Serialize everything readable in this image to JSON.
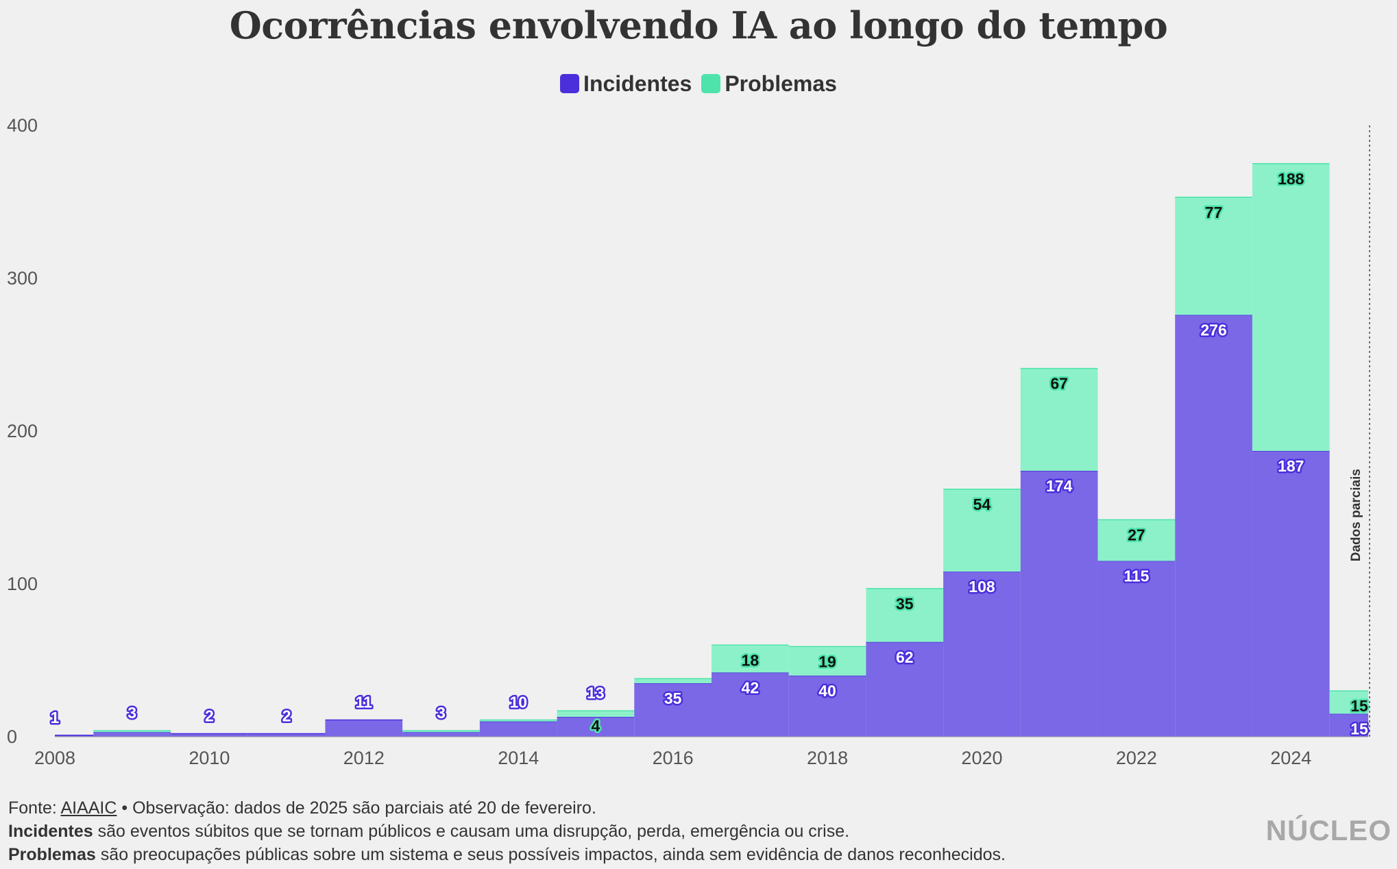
{
  "colors": {
    "incidentes": "#4a2fdb",
    "incidentes_fill": "#7b68e6",
    "problemas": "#4ee3ab",
    "problemas_fill": "#8cf1c9",
    "text": "#333333",
    "background": "#f0f0f0"
  },
  "chart_data": {
    "type": "bar",
    "stacked": true,
    "title": "Ocorrências envolvendo IA ao longo do tempo",
    "categories": [
      "2008",
      "2009",
      "2010",
      "2011",
      "2012",
      "2013",
      "2014",
      "2015",
      "2016",
      "2017",
      "2018",
      "2019",
      "2020",
      "2021",
      "2022",
      "2023",
      "2024",
      "2025"
    ],
    "series": [
      {
        "name": "Incidentes",
        "values": [
          1,
          3,
          2,
          2,
          11,
          3,
          10,
          13,
          35,
          42,
          40,
          62,
          108,
          174,
          115,
          276,
          187,
          15
        ]
      },
      {
        "name": "Problemas",
        "values": [
          null,
          null,
          null,
          null,
          null,
          null,
          null,
          4,
          null,
          18,
          19,
          35,
          54,
          67,
          27,
          77,
          188,
          15
        ]
      }
    ],
    "hidden_segments": [
      {
        "series": "Problemas",
        "category": "2009",
        "value": 1
      },
      {
        "series": "Problemas",
        "category": "2013",
        "value": 1
      },
      {
        "series": "Problemas",
        "category": "2014",
        "value": 1
      },
      {
        "series": "Problemas",
        "category": "2016",
        "value": 3
      }
    ],
    "ylim": [
      0,
      400
    ],
    "yticks": [
      "0",
      "100",
      "200",
      "300",
      "400"
    ],
    "xticks": [
      "2008",
      "2010",
      "2012",
      "2014",
      "2016",
      "2018",
      "2020",
      "2022",
      "2024"
    ],
    "xlim": [
      2008,
      2025
    ],
    "annotation": "Dados parciais",
    "legend_position": "top-center",
    "grid": false
  },
  "legend": {
    "incidentes": "Incidentes",
    "problemas": "Problemas"
  },
  "footer": {
    "fonte_prefix": "Fonte: ",
    "fonte_link": "AIAAIC",
    "fonte_note": " • Observação: dados de 2025 são parciais até 20 de fevereiro.",
    "incidentes_term": "Incidentes",
    "incidentes_def": " são eventos súbitos que se tornam públicos e causam uma disrupção, perda, emergência ou crise.",
    "problemas_term": "Problemas",
    "problemas_def": " são preocupações públicas sobre um sistema e seus possíveis impactos, ainda sem evidência de danos reconhecidos."
  },
  "brand": "NÚCLEO"
}
